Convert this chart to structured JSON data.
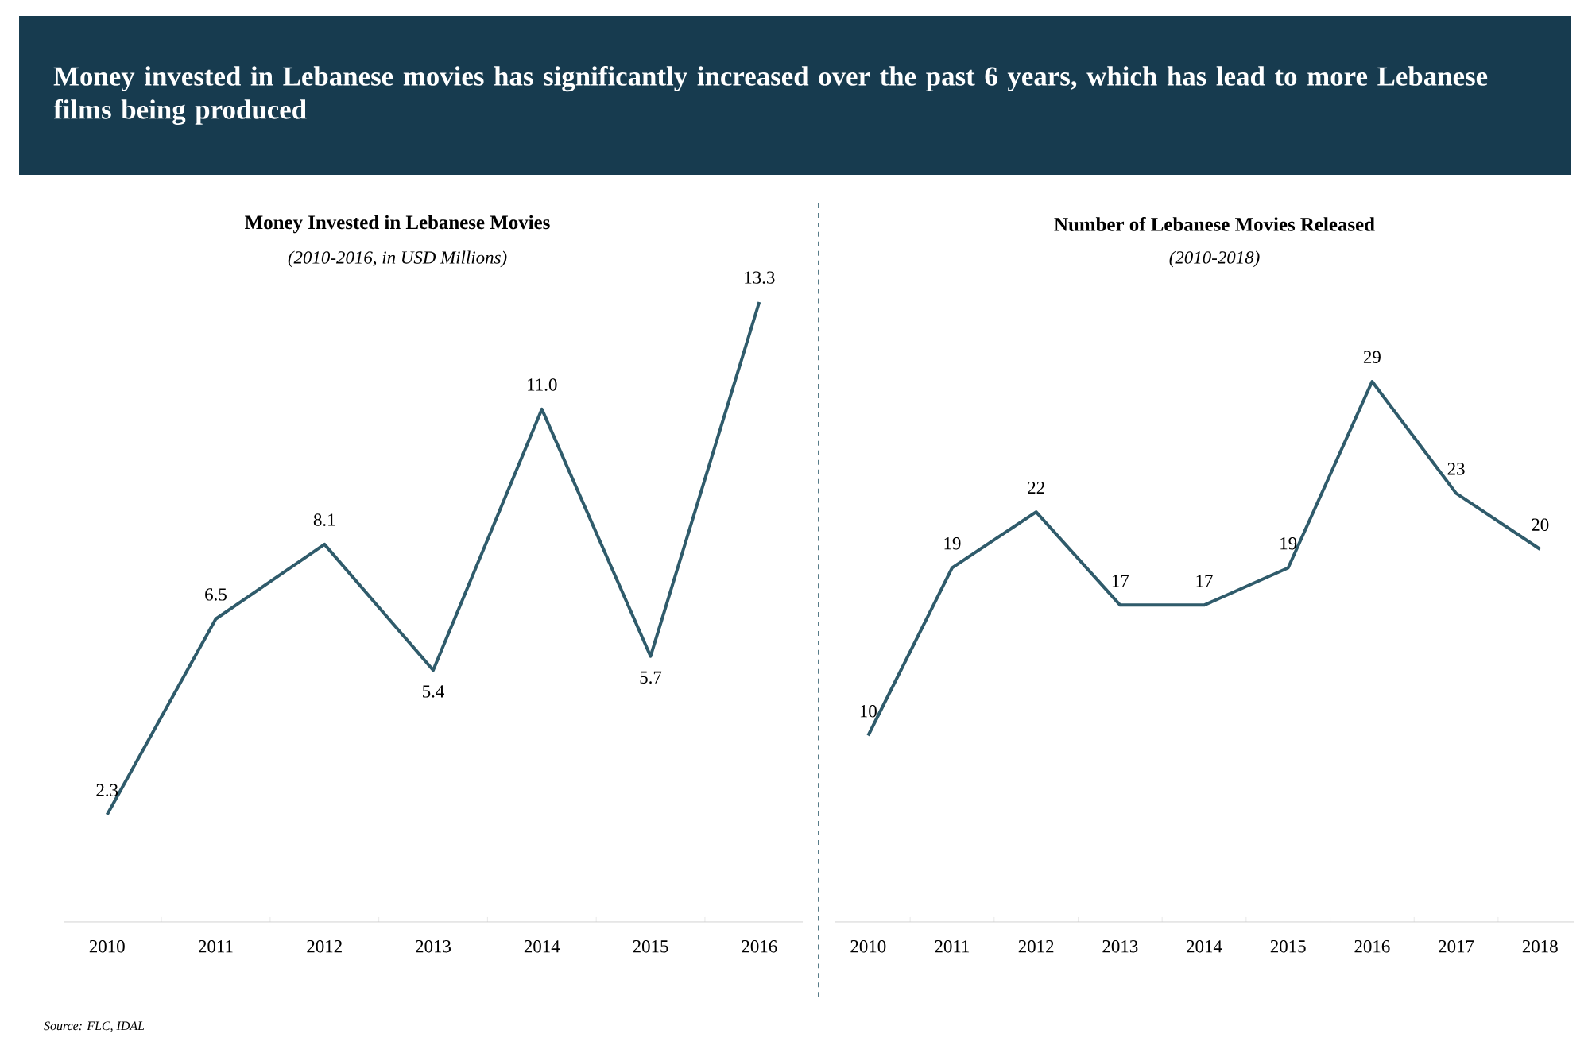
{
  "chart_data": [
    {
      "type": "line",
      "title": "Money Invested in Lebanese Movies",
      "subtitle": "(2010-2016, in USD Millions)",
      "categories": [
        "2010",
        "2011",
        "2012",
        "2013",
        "2014",
        "2015",
        "2016"
      ],
      "values": [
        2.3,
        6.5,
        8.1,
        5.4,
        11.0,
        5.7,
        13.3
      ],
      "value_labels": [
        "2.3",
        "6.5",
        "8.1",
        "5.4",
        "11.0",
        "5.7",
        "13.3"
      ],
      "color": "#2f5b6b",
      "tick_labels": "x",
      "annotations": [
        "Money invested in Lebanese movies has significantly increased over the past 6 years, which has lead to more Lebanese films being produced",
        "Source: FLC, IDAL"
      ]
    },
    {
      "type": "line",
      "title": "Number of Lebanese Movies Released",
      "subtitle": "(2010-2018)",
      "categories": [
        "2010",
        "2011",
        "2012",
        "2013",
        "2014",
        "2015",
        "2016",
        "2017",
        "2018"
      ],
      "values": [
        10,
        19,
        22,
        17,
        17,
        19,
        29,
        23,
        20
      ],
      "data_labels": true,
      "color": "#2f5b6b",
      "tick_labels": "x"
    }
  ]
}
